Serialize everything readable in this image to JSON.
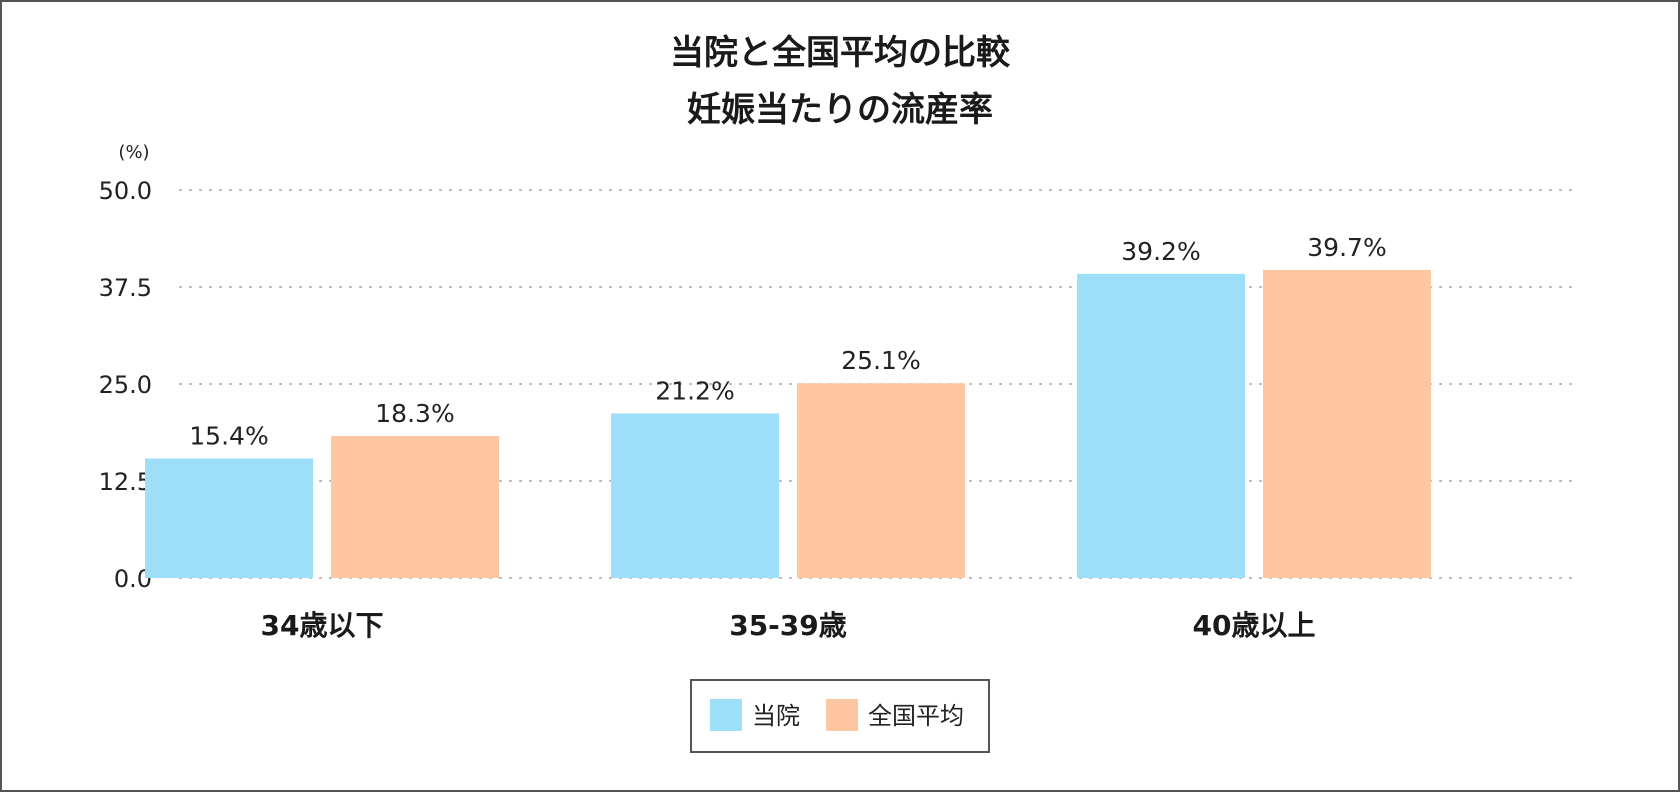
{
  "chart_data": {
    "type": "bar",
    "title_lines": [
      "当院と全国平均の比較",
      "妊娠当たりの流産率"
    ],
    "ylabel": "(%)",
    "xlabel": "",
    "ylim": [
      0,
      50
    ],
    "yticks": [
      0.0,
      12.5,
      25.0,
      37.5,
      50.0
    ],
    "ytick_labels": [
      "0.0",
      "12.5",
      "25.0",
      "37.5",
      "50.0"
    ],
    "grid": true,
    "legend_position": "bottom-center",
    "categories": [
      "34歳以下",
      "35-39歳",
      "40歳以上"
    ],
    "series": [
      {
        "name": "当院",
        "color": "#9ddff9",
        "values": [
          15.4,
          21.2,
          39.2
        ],
        "labels": [
          "15.4%",
          "21.2%",
          "39.2%"
        ]
      },
      {
        "name": "全国平均",
        "color": "#fec6a1",
        "values": [
          18.3,
          25.1,
          39.7
        ],
        "labels": [
          "18.3%",
          "25.1%",
          "39.7%"
        ]
      }
    ]
  }
}
